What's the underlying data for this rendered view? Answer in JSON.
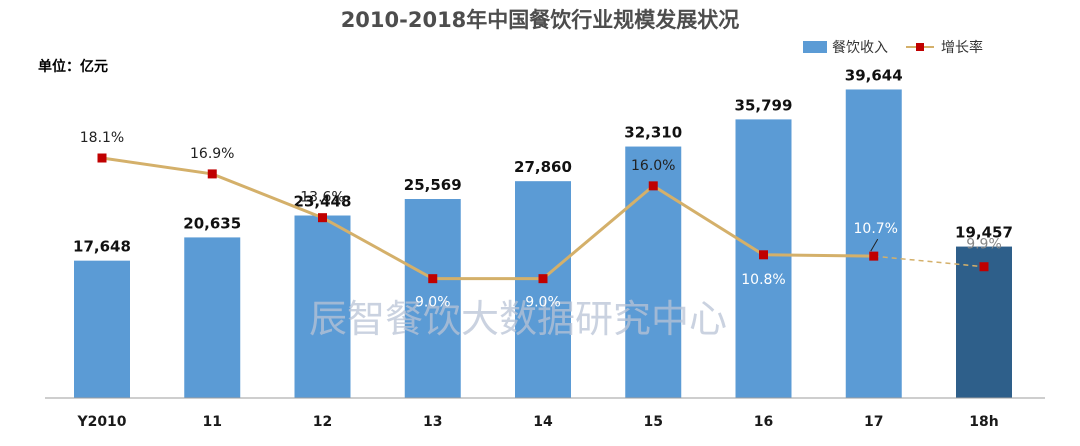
{
  "chart_data": {
    "type": "bar",
    "title": "2010-2018年中国餐饮行业规模发展状况",
    "unit_label": "单位：亿元",
    "watermark": "辰智餐饮大数据研究中心",
    "categories": [
      "Y2010",
      "11",
      "12",
      "13",
      "14",
      "15",
      "16",
      "17",
      "18h"
    ],
    "series": [
      {
        "name": "餐饮收入",
        "chart": "bar",
        "values": [
          17648,
          20635,
          23448,
          25569,
          27860,
          32310,
          35799,
          39644,
          19457
        ],
        "labels": [
          "17,648",
          "20,635",
          "23,448",
          "25,569",
          "27,860",
          "32,310",
          "35,799",
          "39,644",
          "19,457"
        ],
        "color": "#5b9bd5",
        "highlight_color": "#2e5f8a",
        "highlight_index": 8
      },
      {
        "name": "增长率",
        "chart": "line",
        "axis": "secondary",
        "values": [
          18.1,
          16.9,
          13.6,
          9.0,
          9.0,
          16.0,
          10.8,
          10.7,
          9.9
        ],
        "labels": [
          "18.1%",
          "16.9%",
          "13.6%",
          "9.0%",
          "9.0%",
          "16.0%",
          "10.8%",
          "10.7%",
          "9.9%"
        ],
        "line_color": "#d4b06a",
        "marker_color": "#c00000",
        "dashed_last_segment": true
      }
    ],
    "ylim": [
      0,
      46000
    ],
    "y2lim": [
      0,
      27
    ],
    "legend_position": "top-right",
    "grid": false
  }
}
